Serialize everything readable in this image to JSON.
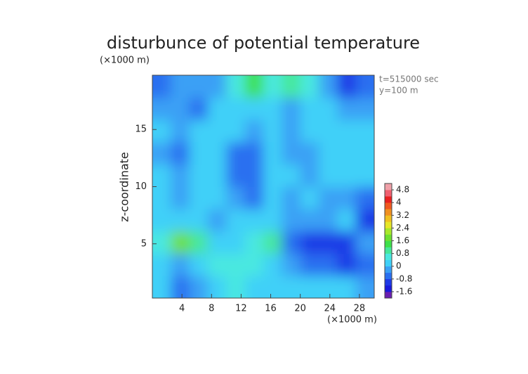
{
  "chart_data": {
    "type": "contour",
    "title": "disturbunce of potential temperature",
    "y_unit": "(×1000 m)",
    "x_unit": "(×1000 m)",
    "ylabel": "z-coordinate",
    "annotations": [
      "t=515000 sec",
      "y=100 m"
    ],
    "x": [
      1.25,
      3.75,
      6.25,
      8.75,
      11.25,
      13.75,
      16.25,
      18.75,
      21.25,
      23.75,
      26.25,
      28.75
    ],
    "z": [
      1.225,
      3.175,
      5.125,
      7.075,
      9.025,
      10.975,
      12.925,
      14.875,
      16.825,
      18.775
    ],
    "values": [
      [
        0.2,
        -0.6,
        -0.4,
        0.2,
        0.4,
        0.2,
        0,
        0,
        0.2,
        0.2,
        0,
        -0.2
      ],
      [
        0,
        -0.2,
        0.2,
        0.4,
        0.4,
        0.6,
        0.2,
        -0.4,
        -0.6,
        -0.8,
        -1.0,
        -0.6
      ],
      [
        0.4,
        1.6,
        0.8,
        0.2,
        0.2,
        0.4,
        1.0,
        -0.6,
        -1.2,
        -1.2,
        -1.0,
        -0.4
      ],
      [
        0.2,
        0.2,
        0,
        -0.4,
        0.2,
        0,
        0,
        -0.4,
        -0.2,
        -0.2,
        0,
        -1.0
      ],
      [
        0,
        -0.2,
        0.2,
        0,
        -0.4,
        -0.6,
        0.2,
        -0.2,
        0,
        -0.2,
        -0.4,
        -0.8
      ],
      [
        0,
        -0.4,
        0.2,
        0.2,
        -0.6,
        -0.6,
        0,
        0.2,
        -0.2,
        0,
        0,
        0
      ],
      [
        -0.2,
        -0.6,
        0.2,
        0.2,
        -0.6,
        -0.6,
        0,
        -0.4,
        -0.2,
        0,
        0,
        0
      ],
      [
        0,
        -0.2,
        0,
        0.2,
        0,
        -0.4,
        0.2,
        -0.2,
        0,
        0.2,
        0,
        0
      ],
      [
        -0.2,
        -0.4,
        -0.6,
        0,
        0.2,
        0,
        0,
        -0.2,
        0,
        0,
        -0.4,
        -0.4
      ],
      [
        -0.6,
        -0.4,
        -0.2,
        -0.2,
        0.6,
        1.2,
        0.4,
        1.0,
        0.6,
        -0.4,
        -1.0,
        -0.6
      ]
    ],
    "xlim": [
      0,
      30
    ],
    "ylim": [
      0.25,
      19.75
    ],
    "xticks": [
      4,
      8,
      12,
      16,
      20,
      24,
      28
    ],
    "yticks": [
      5,
      10,
      15
    ],
    "clim": [
      -2.0,
      5.2
    ],
    "cticks": [
      4.8,
      4,
      3.2,
      2.4,
      1.6,
      0.8,
      0,
      -0.8,
      -1.6
    ],
    "colors": [
      "#6a1fb0",
      "#1a1adc",
      "#1f3ae6",
      "#2a6ff0",
      "#3aa0f5",
      "#3fd0f8",
      "#4ae8e0",
      "#46e89a",
      "#3ee04a",
      "#6ee030",
      "#a8e82a",
      "#e6e628",
      "#f0c020",
      "#f09020",
      "#f05820",
      "#e82020",
      "#f06070",
      "#f0a0a8"
    ]
  }
}
